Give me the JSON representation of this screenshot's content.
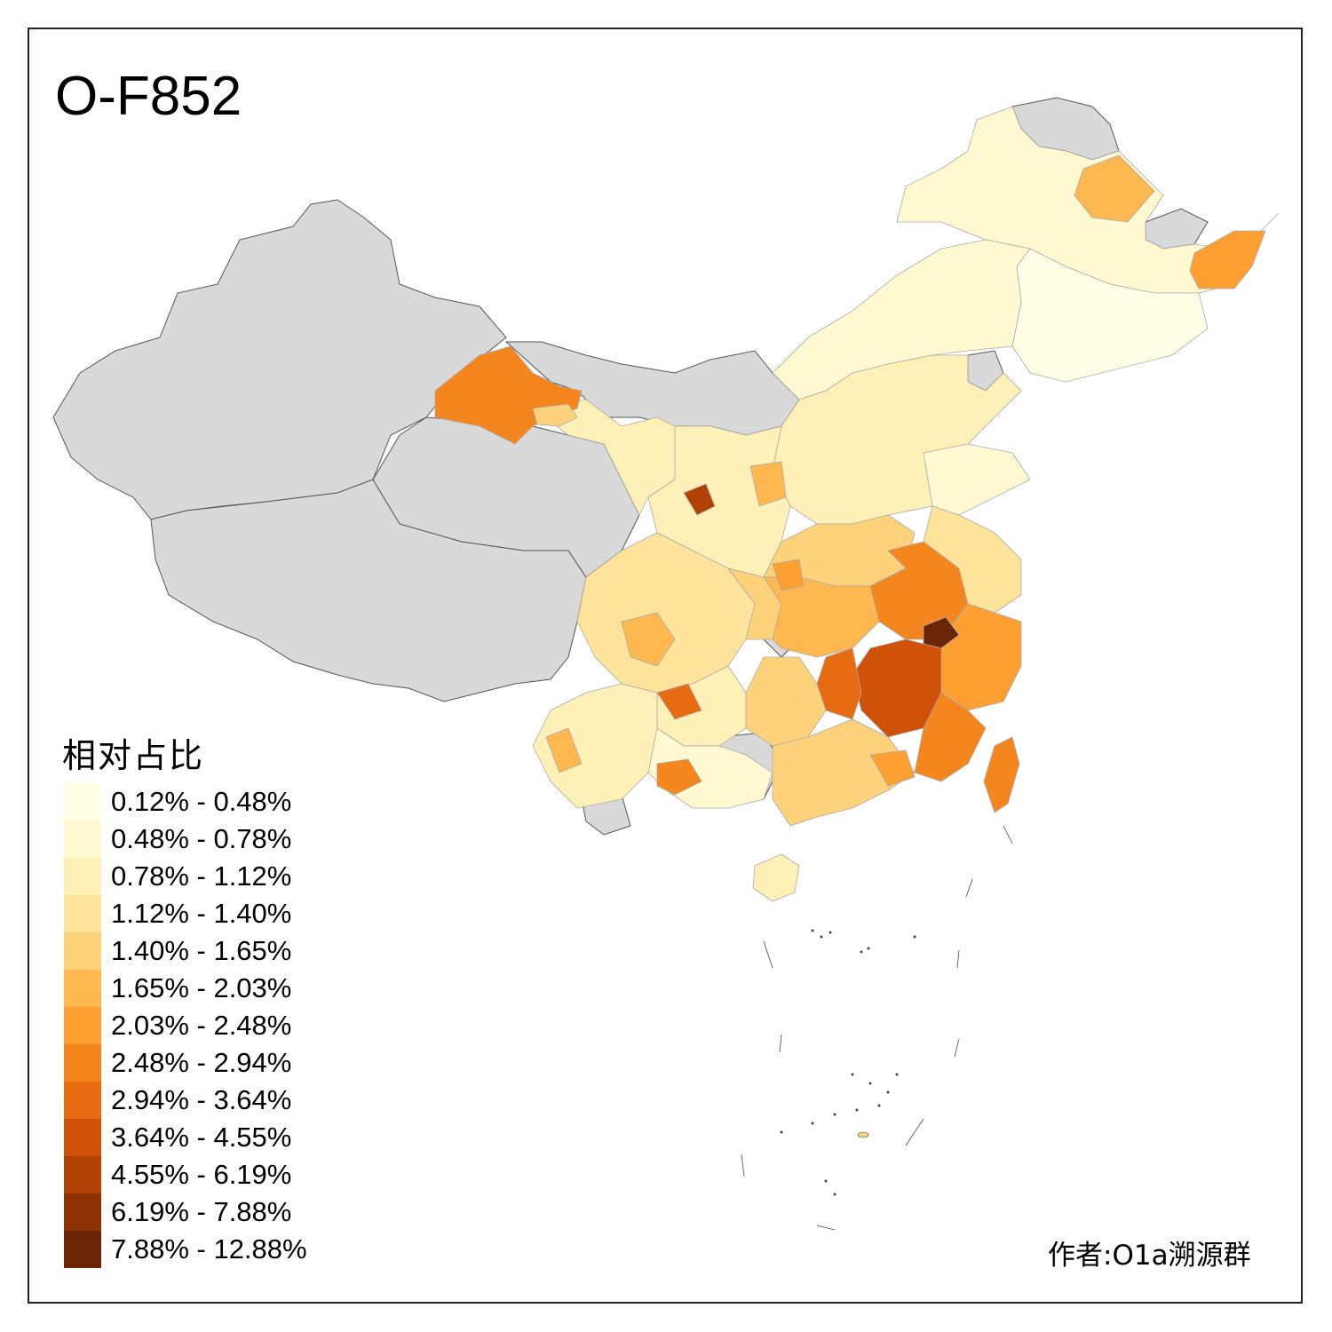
{
  "title": "O-F852",
  "legend": {
    "title": "相对占比",
    "items": [
      {
        "label": "0.12% - 0.48%",
        "color": "#ffffe5"
      },
      {
        "label": "0.48% - 0.78%",
        "color": "#fff9d2"
      },
      {
        "label": "0.78% - 1.12%",
        "color": "#fff0b8"
      },
      {
        "label": "1.12% - 1.40%",
        "color": "#fee49a"
      },
      {
        "label": "1.40% - 1.65%",
        "color": "#fed27a"
      },
      {
        "label": "1.65% - 2.03%",
        "color": "#feb84f"
      },
      {
        "label": "2.03% - 2.48%",
        "color": "#fe9f32"
      },
      {
        "label": "2.48% - 2.94%",
        "color": "#f5861e"
      },
      {
        "label": "2.94% - 3.64%",
        "color": "#e66b11"
      },
      {
        "label": "3.64% - 4.55%",
        "color": "#cf5208"
      },
      {
        "label": "4.55% - 6.19%",
        "color": "#b14205"
      },
      {
        "label": "6.19% - 7.88%",
        "color": "#8c3204"
      },
      {
        "label": "7.88% - 12.88%",
        "color": "#6b2506"
      }
    ]
  },
  "author": "作者:O1a溯源群",
  "no_data_color": "#d9d9d9"
}
